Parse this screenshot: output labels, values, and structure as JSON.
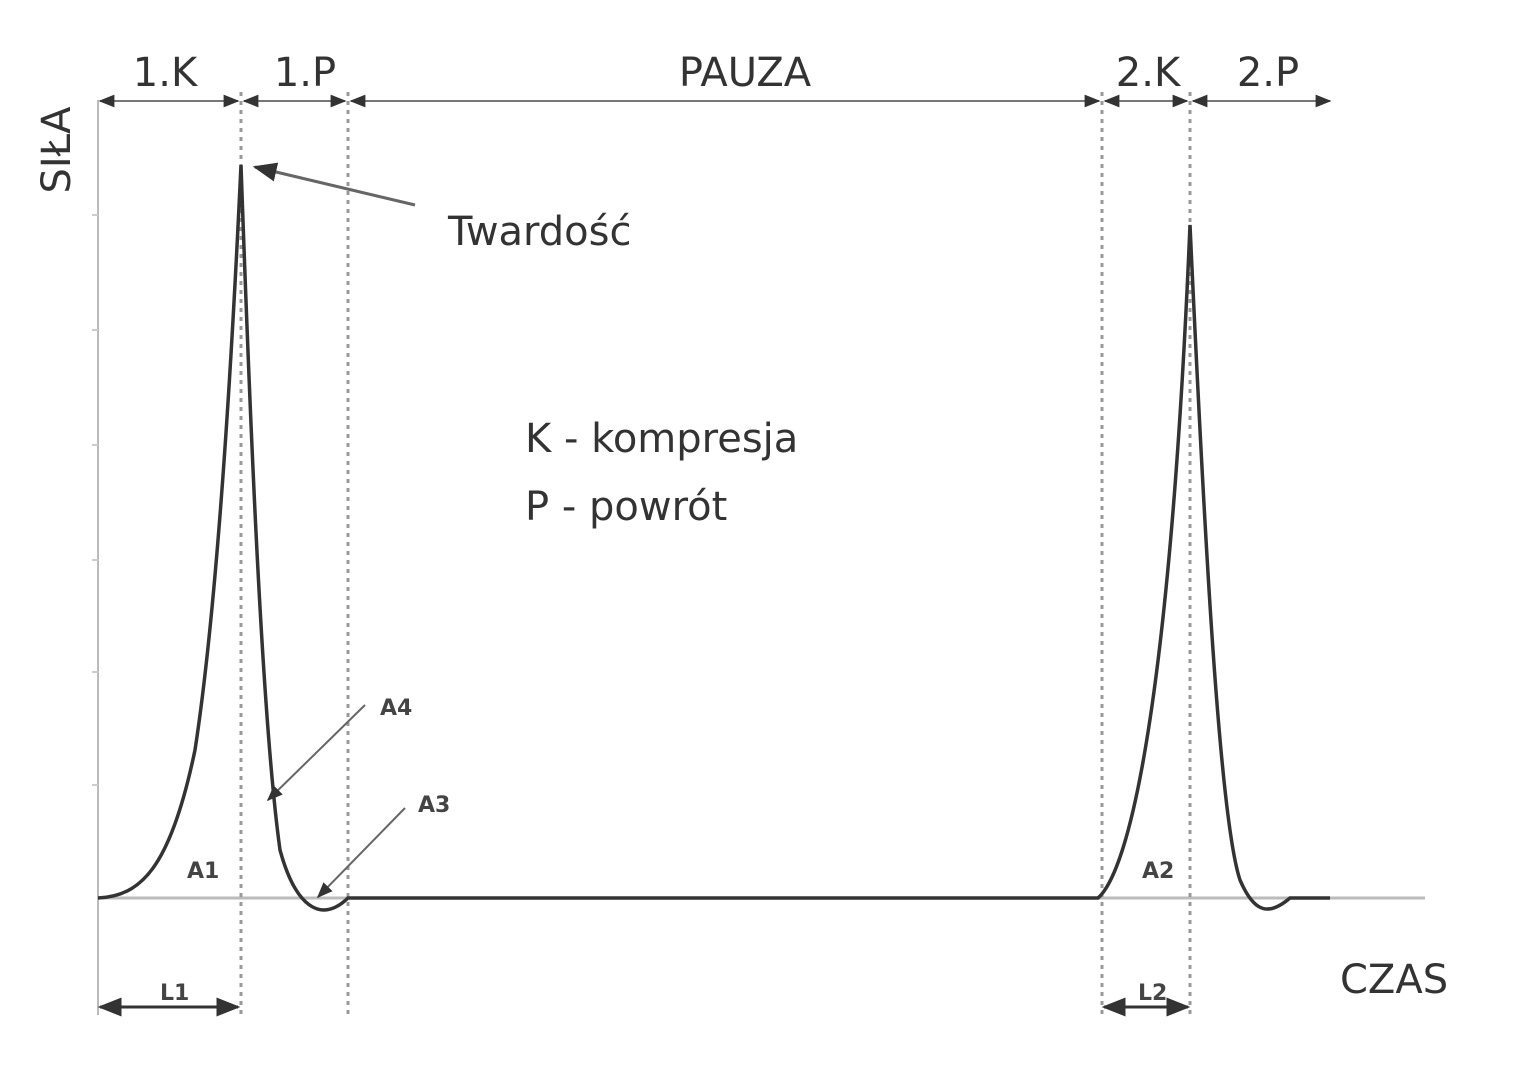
{
  "axes": {
    "y_label": "SIŁA",
    "x_label": "CZAS"
  },
  "phases": [
    "1.K",
    "1.P",
    "PAUZA",
    "2.K",
    "2.P"
  ],
  "annotations": {
    "hardness": "Twardość",
    "a1": "A1",
    "a2": "A2",
    "a3": "A3",
    "a4": "A4",
    "l1": "L1",
    "l2": "L2"
  },
  "legend": {
    "k": "K - kompresja",
    "p": "P - powrót"
  },
  "colors": {
    "curve": "#333333",
    "axis": "#bbbbbb",
    "dashed": "#999999"
  }
}
